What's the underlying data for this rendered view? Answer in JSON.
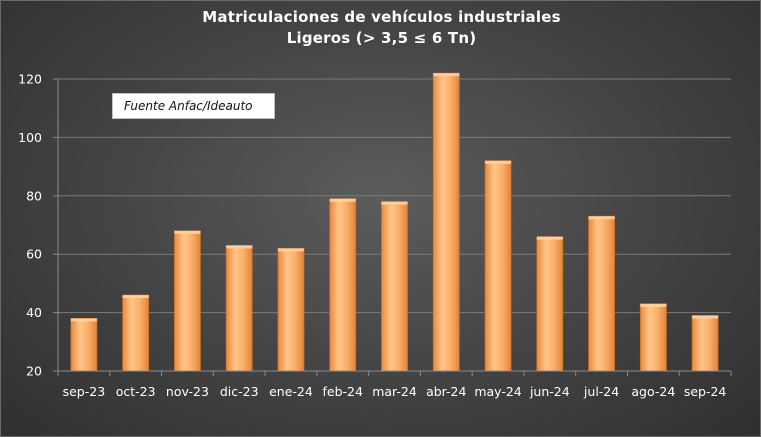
{
  "chart_data": {
    "type": "bar",
    "title": "Matriculaciones de vehículos industriales",
    "subtitle": "Ligeros (> 3,5 ≤ 6 Tn)",
    "annotation": "Fuente Anfac/Ideauto",
    "categories": [
      "sep-23",
      "oct-23",
      "nov-23",
      "dic-23",
      "ene-24",
      "feb-24",
      "mar-24",
      "abr-24",
      "may-24",
      "jun-24",
      "jul-24",
      "ago-24",
      "sep-24"
    ],
    "values": [
      38,
      46,
      68,
      63,
      62,
      79,
      78,
      122,
      92,
      66,
      73,
      43,
      39
    ],
    "ylim": [
      20,
      120
    ],
    "yticks": [
      20,
      40,
      60,
      80,
      100,
      120
    ],
    "grid": true,
    "legend": "none",
    "colors": {
      "bar": "#f7a55a",
      "bar_highlight": "#ffd29e",
      "bar_edge": "#c8702a",
      "grid": "#7a7a7a",
      "text": "#ffffff"
    }
  }
}
